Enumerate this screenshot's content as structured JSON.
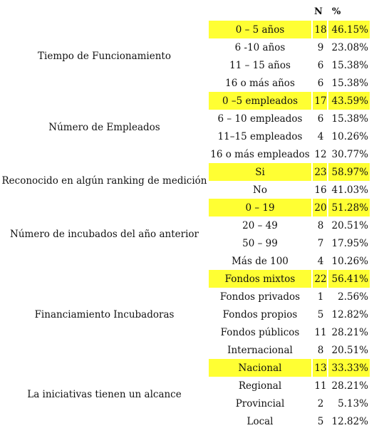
{
  "header": {
    "n_label": "N",
    "pct_label": "%"
  },
  "groups": [
    {
      "category": "Tiempo de Funcionamiento",
      "rows": [
        {
          "option": "0 – 5 años",
          "n": "18",
          "pct": "46.15%",
          "highlight": true
        },
        {
          "option": "6 -10 años",
          "n": "9",
          "pct": "23.08%"
        },
        {
          "option": "11 – 15 años",
          "n": "6",
          "pct": "15.38%"
        },
        {
          "option": "16 o más años",
          "n": "6",
          "pct": "15.38%"
        }
      ]
    },
    {
      "category": "Número de Empleados",
      "rows": [
        {
          "option": "0 –5 empleados",
          "n": "17",
          "pct": "43.59%",
          "highlight": true
        },
        {
          "option": "6 – 10 empleados",
          "n": "6",
          "pct": "15.38%"
        },
        {
          "option": "11–15 empleados",
          "n": "4",
          "pct": "10.26%"
        },
        {
          "option": "16 o más empleados",
          "n": "12",
          "pct": "30.77%"
        }
      ]
    },
    {
      "category": "Reconocido en algún ranking de medición",
      "rows": [
        {
          "option": "Si",
          "n": "23",
          "pct": "58.97%",
          "highlight": true
        },
        {
          "option": "No",
          "n": "16",
          "pct": "41.03%"
        }
      ]
    },
    {
      "category": "Número de incubados del año anterior",
      "rows": [
        {
          "option": "0 – 19",
          "n": "20",
          "pct": "51.28%",
          "highlight": true
        },
        {
          "option": "20 – 49",
          "n": "8",
          "pct": "20.51%"
        },
        {
          "option": "50 – 99",
          "n": "7",
          "pct": "17.95%"
        },
        {
          "option": "Más de 100",
          "n": "4",
          "pct": "10.26%"
        }
      ]
    },
    {
      "category": "Financiamiento Incubadoras",
      "rows": [
        {
          "option": "Fondos mixtos",
          "n": "22",
          "pct": "56.41%",
          "highlight": true
        },
        {
          "option": "Fondos privados",
          "n": "1",
          "pct": "2.56%"
        },
        {
          "option": "Fondos propios",
          "n": "5",
          "pct": "12.82%"
        },
        {
          "option": "Fondos públicos",
          "n": "11",
          "pct": "28.21%"
        },
        {
          "option": "Internacional",
          "n": "8",
          "pct": "20.51%"
        }
      ]
    },
    {
      "category": "La iniciativas tienen un alcance",
      "rows": [
        {
          "option": "Nacional",
          "n": "13",
          "pct": "33.33%",
          "highlight": true
        },
        {
          "option": "Regional",
          "n": "11",
          "pct": "28.21%"
        },
        {
          "option": "Provincial",
          "n": "2",
          "pct": "5.13%"
        },
        {
          "option": "Local",
          "n": "5",
          "pct": "12.82%"
        }
      ]
    }
  ],
  "colors": {
    "highlight": "#ffff33",
    "text": "#111111",
    "background": "#ffffff"
  }
}
